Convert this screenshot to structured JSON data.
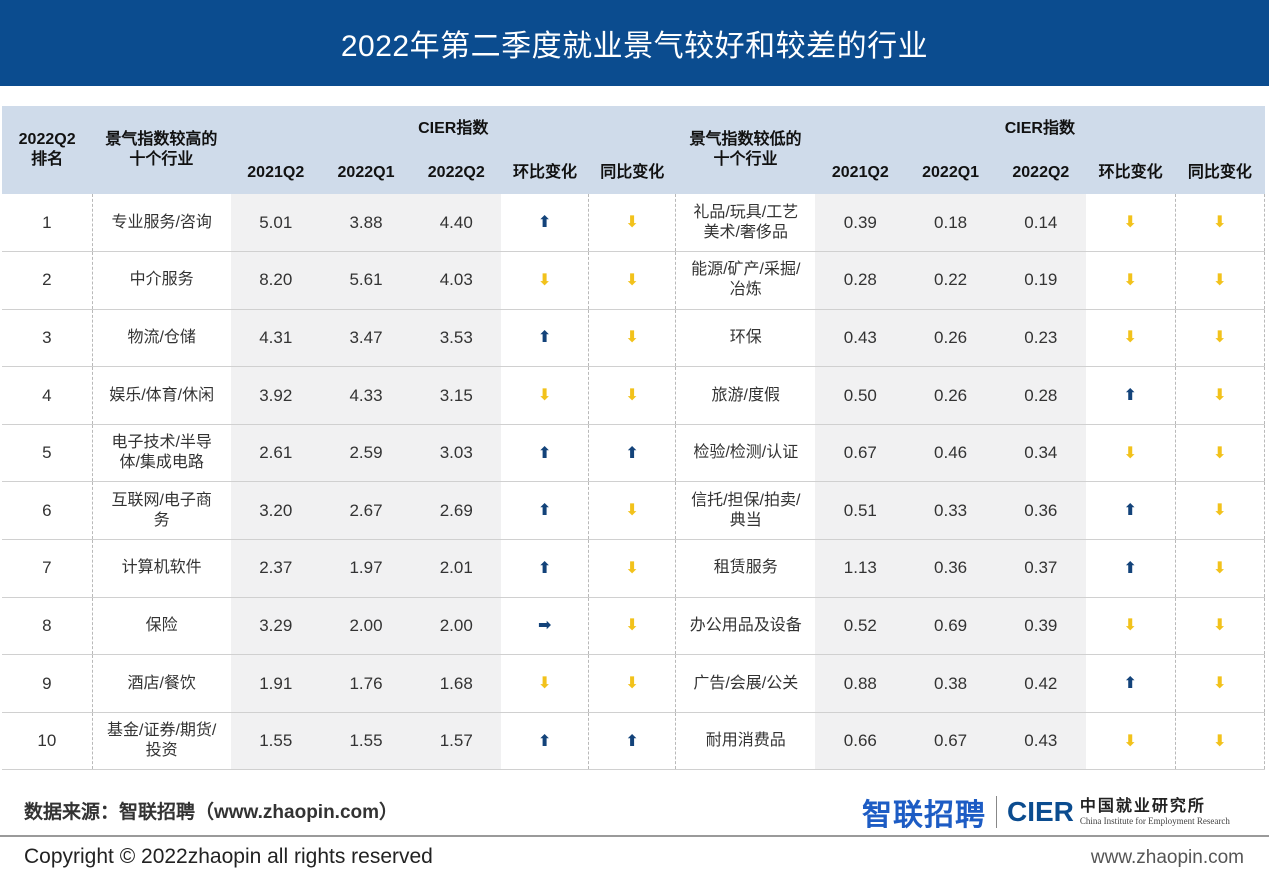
{
  "title": "2022年第二季度就业景气较好和较差的行业",
  "colors": {
    "title_bg": "#0b4c8f",
    "header_bg": "#cfdbea",
    "arrow_up": "#13437a",
    "arrow_down": "#f2c21b"
  },
  "header": {
    "rank": "2022Q2\n排名",
    "high_industry": "景气指数较高的\n十个行业",
    "low_industry": "景气指数较低的\n十个行业",
    "cier_left": "CIER指数",
    "cier_right": "CIER指数",
    "q_2021q2": "2021Q2",
    "q_2022q1": "2022Q1",
    "q_2022q2": "2022Q2",
    "mom": "环比变化",
    "yoy": "同比变化"
  },
  "chart_data": {
    "type": "table",
    "title": "2022年第二季度就业景气较好和较差的行业",
    "columns": [
      "2022Q2排名",
      "景气指数较高的十个行业",
      "2021Q2",
      "2022Q1",
      "2022Q2",
      "环比变化",
      "同比变化",
      "景气指数较低的十个行业",
      "2021Q2",
      "2022Q1",
      "2022Q2",
      "环比变化",
      "同比变化"
    ],
    "rows": [
      {
        "rank": "1",
        "high": {
          "industry": "专业服务/咨询",
          "q2021q2": "5.01",
          "q2022q1": "3.88",
          "q2022q2": "4.40",
          "mom": "up",
          "yoy": "down"
        },
        "low": {
          "industry": "礼品/玩具/工艺\n美术/奢侈品",
          "q2021q2": "0.39",
          "q2022q1": "0.18",
          "q2022q2": "0.14",
          "mom": "down",
          "yoy": "down"
        }
      },
      {
        "rank": "2",
        "high": {
          "industry": "中介服务",
          "q2021q2": "8.20",
          "q2022q1": "5.61",
          "q2022q2": "4.03",
          "mom": "down",
          "yoy": "down"
        },
        "low": {
          "industry": "能源/矿产/采掘/\n冶炼",
          "q2021q2": "0.28",
          "q2022q1": "0.22",
          "q2022q2": "0.19",
          "mom": "down",
          "yoy": "down"
        }
      },
      {
        "rank": "3",
        "high": {
          "industry": "物流/仓储",
          "q2021q2": "4.31",
          "q2022q1": "3.47",
          "q2022q2": "3.53",
          "mom": "up",
          "yoy": "down"
        },
        "low": {
          "industry": "环保",
          "q2021q2": "0.43",
          "q2022q1": "0.26",
          "q2022q2": "0.23",
          "mom": "down",
          "yoy": "down"
        }
      },
      {
        "rank": "4",
        "high": {
          "industry": "娱乐/体育/休闲",
          "q2021q2": "3.92",
          "q2022q1": "4.33",
          "q2022q2": "3.15",
          "mom": "down",
          "yoy": "down"
        },
        "low": {
          "industry": "旅游/度假",
          "q2021q2": "0.50",
          "q2022q1": "0.26",
          "q2022q2": "0.28",
          "mom": "up",
          "yoy": "down"
        }
      },
      {
        "rank": "5",
        "high": {
          "industry": "电子技术/半导\n体/集成电路",
          "q2021q2": "2.61",
          "q2022q1": "2.59",
          "q2022q2": "3.03",
          "mom": "up",
          "yoy": "up"
        },
        "low": {
          "industry": "检验/检测/认证",
          "q2021q2": "0.67",
          "q2022q1": "0.46",
          "q2022q2": "0.34",
          "mom": "down",
          "yoy": "down"
        }
      },
      {
        "rank": "6",
        "high": {
          "industry": "互联网/电子商\n务",
          "q2021q2": "3.20",
          "q2022q1": "2.67",
          "q2022q2": "2.69",
          "mom": "up",
          "yoy": "down"
        },
        "low": {
          "industry": "信托/担保/拍卖/\n典当",
          "q2021q2": "0.51",
          "q2022q1": "0.33",
          "q2022q2": "0.36",
          "mom": "up",
          "yoy": "down"
        }
      },
      {
        "rank": "7",
        "high": {
          "industry": "计算机软件",
          "q2021q2": "2.37",
          "q2022q1": "1.97",
          "q2022q2": "2.01",
          "mom": "up",
          "yoy": "down"
        },
        "low": {
          "industry": "租赁服务",
          "q2021q2": "1.13",
          "q2022q1": "0.36",
          "q2022q2": "0.37",
          "mom": "up",
          "yoy": "down"
        }
      },
      {
        "rank": "8",
        "high": {
          "industry": "保险",
          "q2021q2": "3.29",
          "q2022q1": "2.00",
          "q2022q2": "2.00",
          "mom": "flat",
          "yoy": "down"
        },
        "low": {
          "industry": "办公用品及设备",
          "q2021q2": "0.52",
          "q2022q1": "0.69",
          "q2022q2": "0.39",
          "mom": "down",
          "yoy": "down"
        }
      },
      {
        "rank": "9",
        "high": {
          "industry": "酒店/餐饮",
          "q2021q2": "1.91",
          "q2022q1": "1.76",
          "q2022q2": "1.68",
          "mom": "down",
          "yoy": "down"
        },
        "low": {
          "industry": "广告/会展/公关",
          "q2021q2": "0.88",
          "q2022q1": "0.38",
          "q2022q2": "0.42",
          "mom": "up",
          "yoy": "down"
        }
      },
      {
        "rank": "10",
        "high": {
          "industry": "基金/证券/期货/\n投资",
          "q2021q2": "1.55",
          "q2022q1": "1.55",
          "q2022q2": "1.57",
          "mom": "up",
          "yoy": "up"
        },
        "low": {
          "industry": "耐用消费品",
          "q2021q2": "0.66",
          "q2022q1": "0.67",
          "q2022q2": "0.43",
          "mom": "down",
          "yoy": "down"
        }
      }
    ]
  },
  "arrow_glyphs": {
    "up": "⬆",
    "down": "⬇",
    "flat": "➡"
  },
  "footer": {
    "source": "数据来源：智联招聘（www.zhaopin.com）",
    "logo_zhilian": "智联招聘",
    "logo_cier": "CIER",
    "logo_cn": "中国就业研究所",
    "logo_en": "China Institute for Employment Research",
    "copyright": "Copyright ©  2022zhaopin all rights reserved",
    "website": "www.zhaopin.com"
  }
}
